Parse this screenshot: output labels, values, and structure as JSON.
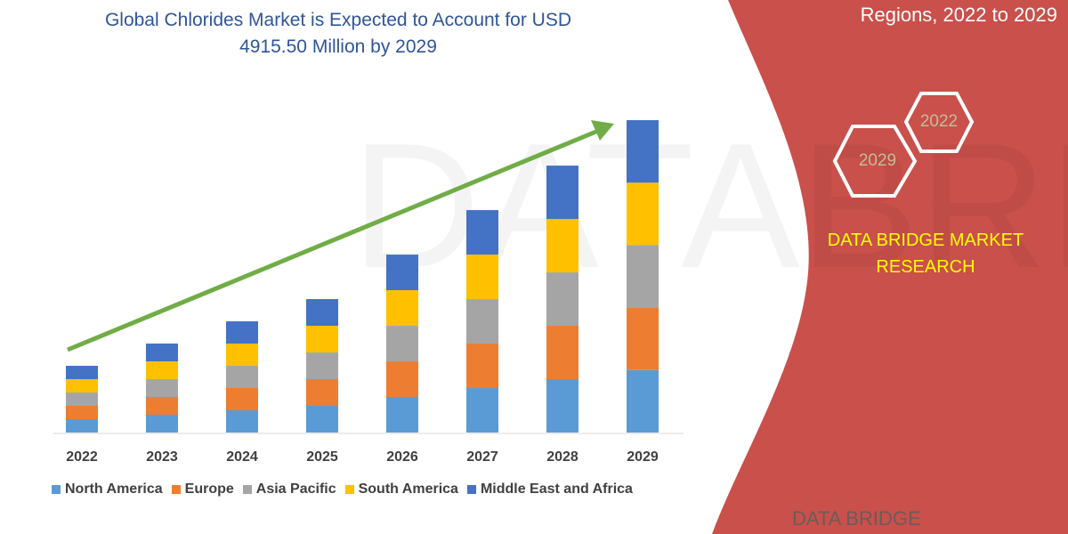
{
  "header": {
    "title_line1": "Global Chlorides Market is Expected to Account for USD",
    "title_line2": "4915.50 Million by 2029",
    "side_title": "Regions, 2022 to 2029"
  },
  "side_panel": {
    "hex_left": "2029",
    "hex_right": "2022",
    "brand_line1": "DATA BRIDGE MARKET",
    "brand_line2": "RESEARCH",
    "footer_logo": "DATA BRIDGE",
    "panel_color": "#c9504b",
    "brand_color": "#ffff00"
  },
  "chart_data": {
    "type": "bar",
    "stacked": true,
    "title": "Global Chlorides Market is Expected to Account for USD 4915.50 Million by 2029",
    "categories": [
      "2022",
      "2023",
      "2024",
      "2025",
      "2026",
      "2027",
      "2028",
      "2029"
    ],
    "series": [
      {
        "name": "North America",
        "color": "#5b9bd5",
        "values": [
          210,
          280,
          350,
          420,
          560,
          700,
          840,
          983
        ]
      },
      {
        "name": "Europe",
        "color": "#ed7d31",
        "values": [
          210,
          280,
          350,
          420,
          560,
          700,
          840,
          983
        ]
      },
      {
        "name": "Asia Pacific",
        "color": "#a5a5a5",
        "values": [
          210,
          280,
          350,
          420,
          560,
          700,
          840,
          983
        ]
      },
      {
        "name": "South America",
        "color": "#ffc000",
        "values": [
          210,
          280,
          350,
          420,
          560,
          700,
          840,
          983
        ]
      },
      {
        "name": "Middle East and Africa",
        "color": "#4472c4",
        "values": [
          210,
          280,
          350,
          420,
          560,
          700,
          840,
          983.5
        ]
      }
    ],
    "ylim": [
      0,
      4915.5
    ],
    "grid": false,
    "legend": "bottom",
    "trend_arrow_color": "#70ad47"
  }
}
